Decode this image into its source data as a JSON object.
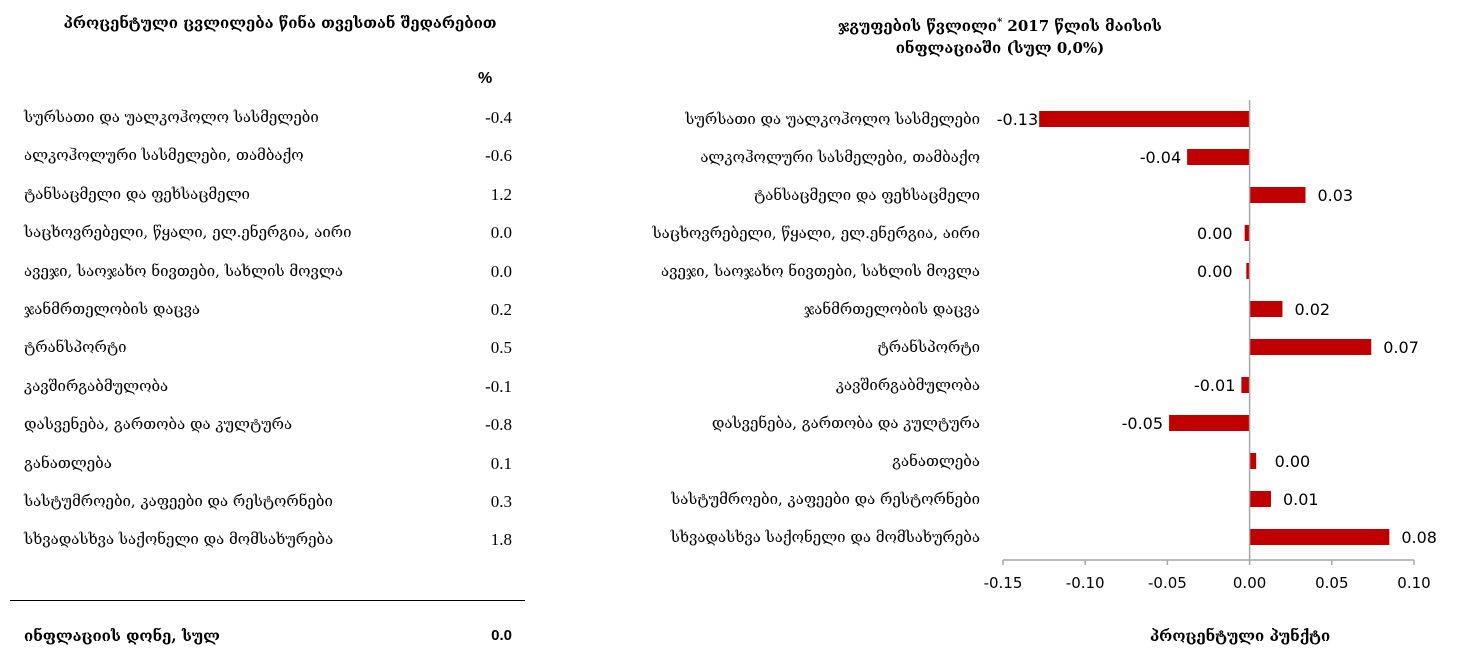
{
  "left_panel": {
    "title": "პროცენტული ცვლილება წინა თვესთან შედარებით",
    "unit": "%",
    "rows": [
      {
        "label": "სურსათი და უალკოჰოლო სასმელები",
        "value": "-0.4"
      },
      {
        "label": "ალკოჰოლური სასმელები, თამბაქო",
        "value": "-0.6"
      },
      {
        "label": "ტანსაცმელი და ფეხსაცმელი",
        "value": "1.2"
      },
      {
        "label": "საცხოვრებელი, წყალი, ელ.ენერგია, აირი",
        "value": "0.0"
      },
      {
        "label": "ავეჯი, საოჯახო ნივთები, სახლის მოვლა",
        "value": "0.0"
      },
      {
        "label": "ჯანმრთელობის დაცვა",
        "value": "0.2"
      },
      {
        "label": "ტრანსპორტი",
        "value": "0.5"
      },
      {
        "label": "კავშირგაბმულობა",
        "value": "-0.1"
      },
      {
        "label": "დასვენება, გართობა და კულტურა",
        "value": "-0.8"
      },
      {
        "label": "განათლება",
        "value": "0.1"
      },
      {
        "label": "სასტუმროები, კაფეები და რესტორნები",
        "value": "0.3"
      },
      {
        "label": "სხვადასხვა საქონელი და მომსახურება",
        "value": "1.8"
      }
    ],
    "total_label": "ინფლაციის დონე, სულ",
    "total_value": "0.0"
  },
  "chart_data": {
    "type": "bar",
    "orientation": "horizontal",
    "title": "ჯგუფების წვლილი 2017 წლის მაისის ინფლაციაში (სულ 0,0%)",
    "title_part1": "ჯგუფების წვლილი",
    "title_mark": "*",
    "title_part2": " 2017 წლის მაისის",
    "title_line2": "ინფლაციაში (სულ 0,0%)",
    "xlabel": "პროცენტული პუნქტი",
    "ylabel": "",
    "xlim": [
      -0.15,
      0.1
    ],
    "x_ticks": [
      "-0.15",
      "-0.10",
      "-0.05",
      "0.00",
      "0.05",
      "0.10"
    ],
    "grid": false,
    "bar_color": "#c00000",
    "axis_color": "#a6a6a6",
    "categories": [
      "სურსათი და უალკოჰოლო  სასმელები",
      "ალკოჰოლური  სასმელები, თამბაქო",
      "ტანსაცმელი და ფეხსაცმელი",
      "საცხოვრებელი, წყალი, ელ.ენერგია, აირი",
      "ავეჯი, საოჯახო ნივთები, სახლის მოვლა",
      "ჯანმრთელობის დაცვა",
      "ტრანსპორტი",
      "კავშირგაბმულობა",
      "დასვენება, გართობა და კულტურა",
      "განათლება",
      "სასტუმროები, კაფეები და რესტორნები",
      "სხვადასხვა საქონელი და მომსახურება"
    ],
    "values": [
      -0.128,
      -0.038,
      0.034,
      -0.003,
      -0.002,
      0.02,
      0.074,
      -0.005,
      -0.049,
      0.004,
      0.013,
      0.085
    ],
    "data_labels": [
      "-0.13",
      "-0.04",
      "0.03",
      "0.00",
      "0.00",
      "0.02",
      "0.07",
      "-0.01",
      "-0.05",
      "0.00",
      "0.01",
      "0.08"
    ]
  }
}
